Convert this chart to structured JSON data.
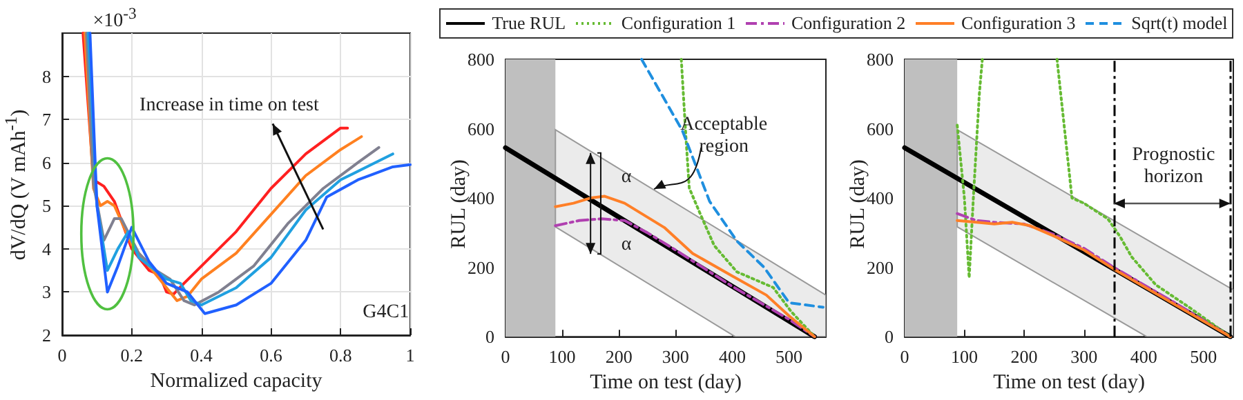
{
  "chart_data": [
    {
      "type": "line",
      "xlabel": "Normalized capacity",
      "ylabel": "dV/dQ (V mAh$^{-1}$)",
      "annotations": [
        "×10$^{-3}$",
        "Increase in time on test",
        "G4C1"
      ],
      "xlim": [
        0,
        1
      ],
      "xticks": [
        0,
        0.2,
        0.4,
        0.6,
        0.8,
        1
      ],
      "ylim": [
        2,
        9
      ],
      "yticks": [
        2,
        3,
        4,
        5,
        6,
        7,
        8
      ],
      "grid": true,
      "line_style": "solid",
      "series": [
        {
          "color": "#ff2020",
          "x": [
            0.06,
            0.09,
            0.12,
            0.15,
            0.2,
            0.25,
            0.28,
            0.3,
            0.32,
            0.35,
            0.4,
            0.5,
            0.6,
            0.7,
            0.8,
            0.82
          ],
          "values": [
            9,
            5.6,
            5.45,
            5.1,
            4.0,
            3.5,
            3.4,
            3.0,
            2.95,
            3.2,
            3.6,
            4.4,
            5.4,
            6.2,
            6.8,
            6.8
          ]
        },
        {
          "color": "#ff8020",
          "x": [
            0.065,
            0.09,
            0.11,
            0.13,
            0.15,
            0.2,
            0.25,
            0.3,
            0.33,
            0.36,
            0.4,
            0.5,
            0.6,
            0.7,
            0.8,
            0.86
          ],
          "values": [
            9,
            5.4,
            5.0,
            5.1,
            5.0,
            4.1,
            3.6,
            3.1,
            2.8,
            2.9,
            3.3,
            3.9,
            4.8,
            5.7,
            6.3,
            6.6
          ]
        },
        {
          "color": "#808090",
          "x": [
            0.07,
            0.09,
            0.12,
            0.15,
            0.17,
            0.22,
            0.27,
            0.31,
            0.35,
            0.38,
            0.45,
            0.55,
            0.65,
            0.75,
            0.85,
            0.91
          ],
          "values": [
            9,
            5.5,
            4.2,
            4.7,
            4.7,
            3.9,
            3.5,
            3.3,
            2.8,
            2.7,
            3.0,
            3.6,
            4.6,
            5.4,
            6.0,
            6.35
          ]
        },
        {
          "color": "#20a0e0",
          "x": [
            0.075,
            0.1,
            0.13,
            0.16,
            0.19,
            0.22,
            0.3,
            0.34,
            0.37,
            0.4,
            0.5,
            0.6,
            0.7,
            0.8,
            0.9,
            0.95
          ],
          "values": [
            9,
            5.0,
            3.5,
            4.0,
            4.4,
            3.8,
            3.3,
            3.2,
            2.8,
            2.7,
            3.1,
            3.8,
            4.9,
            5.6,
            6.0,
            6.2
          ]
        },
        {
          "color": "#2060ff",
          "x": [
            0.08,
            0.1,
            0.13,
            0.16,
            0.2,
            0.25,
            0.3,
            0.36,
            0.38,
            0.41,
            0.5,
            0.6,
            0.7,
            0.76,
            0.85,
            0.95,
            1.0
          ],
          "values": [
            9,
            5.0,
            3.0,
            3.6,
            4.5,
            3.7,
            3.2,
            3.0,
            2.8,
            2.5,
            2.7,
            3.2,
            4.2,
            5.2,
            5.6,
            5.9,
            5.95
          ]
        }
      ]
    },
    {
      "type": "line",
      "xlabel": "Time on test (day)",
      "ylabel": "RUL (day)",
      "annotations": [
        "Acceptable region",
        "α",
        "α"
      ],
      "xlim": [
        0,
        565
      ],
      "xticks": [
        0,
        100,
        200,
        300,
        400,
        500
      ],
      "ylim": [
        0,
        800
      ],
      "yticks": [
        0,
        200,
        400,
        600,
        800
      ],
      "legend": "top",
      "bands": [
        {
          "axis": "x",
          "from": 0,
          "to": 88,
          "color": "#bfbfbf"
        }
      ],
      "series": [
        {
          "name": "True RUL",
          "color": "#000000",
          "line_style": "solid",
          "x": [
            0,
            88,
            405,
            545,
            565
          ],
          "values": [
            545,
            457,
            140,
            0,
            null
          ],
          "lower": [
            null,
            317,
            0,
            0,
            0
          ],
          "upper": [
            null,
            597,
            280,
            140,
            120
          ]
        },
        {
          "name": "Configuration 1",
          "color": "#66bb33",
          "line_style": "dotted",
          "x": [
            310,
            318,
            324,
            344,
            368,
            408,
            472,
            504,
            545
          ],
          "values": [
            800,
            580,
            429,
            352,
            263,
            187,
            142,
            72,
            0
          ]
        },
        {
          "name": "Configuration 2",
          "color": "#b040b0",
          "line_style": "dashdot",
          "x": [
            88,
            130,
            170,
            210,
            250,
            300,
            400,
            500,
            545
          ],
          "values": [
            320,
            335,
            340,
            335,
            300,
            250,
            145,
            50,
            0
          ]
        },
        {
          "name": "Configuration 3",
          "color": "#ff7f27",
          "line_style": "solid",
          "x": [
            88,
            120,
            150,
            175,
            210,
            280,
            330,
            400,
            460,
            500,
            545
          ],
          "values": [
            375,
            385,
            400,
            405,
            385,
            315,
            240,
            175,
            120,
            60,
            0
          ]
        },
        {
          "name": "Sqrt(t) model",
          "color": "#1f8fdf",
          "line_style": "dashed",
          "x": [
            240,
            312,
            360,
            408,
            456,
            500,
            560
          ],
          "values": [
            800,
            594,
            390,
            276,
            200,
            98,
            85
          ]
        }
      ]
    },
    {
      "type": "line",
      "xlabel": "Time on test (day)",
      "ylabel": "RUL (day)",
      "annotations": [
        "Prognostic horizon"
      ],
      "xlim": [
        0,
        550
      ],
      "xticks": [
        0,
        100,
        200,
        300,
        400,
        500
      ],
      "ylim": [
        0,
        800
      ],
      "yticks": [
        0,
        200,
        400,
        600,
        800
      ],
      "legend": "top",
      "bands": [
        {
          "axis": "x",
          "from": 0,
          "to": 88,
          "color": "#bfbfbf"
        }
      ],
      "ref_lines": [
        {
          "axis": "x",
          "value": 350,
          "color": "#000000",
          "line_style": "dashdot"
        },
        {
          "axis": "x",
          "value": 545,
          "color": "#000000",
          "line_style": "dashdot"
        }
      ],
      "series": [
        {
          "name": "True RUL",
          "color": "#000000",
          "line_style": "solid",
          "x": [
            0,
            88,
            405,
            545,
            550
          ],
          "values": [
            545,
            457,
            140,
            0,
            null
          ],
          "lower": [
            null,
            317,
            0,
            0,
            0
          ],
          "upper": [
            null,
            597,
            280,
            140,
            135
          ]
        },
        {
          "name": "Configuration 1",
          "color": "#66bb33",
          "line_style": "dotted",
          "x": [
            88,
            100,
            108,
            115,
            125,
            130,
            190,
            255,
            280,
            300,
            340,
            360,
            380,
            420,
            480,
            545
          ],
          "values": [
            610,
            400,
            170,
            400,
            700,
            800,
            null,
            800,
            400,
            385,
            340,
            290,
            230,
            150,
            80,
            0
          ]
        },
        {
          "name": "Configuration 2",
          "color": "#b040b0",
          "line_style": "dashdot",
          "x": [
            88,
            120,
            150,
            200,
            250,
            300,
            350,
            450,
            545
          ],
          "values": [
            355,
            335,
            330,
            325,
            295,
            255,
            200,
            100,
            0
          ]
        },
        {
          "name": "Configuration 3",
          "color": "#ff7f27",
          "line_style": "solid",
          "x": [
            88,
            120,
            150,
            180,
            210,
            250,
            300,
            350,
            450,
            545
          ],
          "values": [
            335,
            330,
            325,
            330,
            320,
            290,
            250,
            195,
            95,
            0
          ]
        }
      ]
    }
  ]
}
